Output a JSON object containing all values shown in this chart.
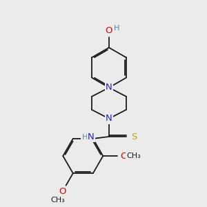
{
  "bg_color": "#ebebeb",
  "bond_color": "#1a1a1a",
  "bond_lw": 1.3,
  "dbo": 0.06,
  "colors": {
    "N": "#2222cc",
    "O": "#dd0000",
    "S": "#bbaa00",
    "H": "#558899",
    "C": "#1a1a1a"
  },
  "fs": 9.5,
  "fs_small": 8.0,
  "figsize": [
    3.0,
    3.0
  ],
  "dpi": 100
}
